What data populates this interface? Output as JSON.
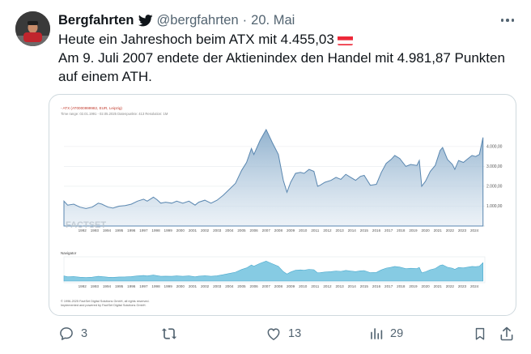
{
  "tweet": {
    "author_name": "Bergfahrten",
    "handle": "@bergfahrten",
    "separator": "·",
    "date": "20. Mai",
    "text_line1": "Heute ein Jahreshoch beim ATX mit 4.455,03",
    "text_line2": "Am 9. Juli 2007 endete der Aktienindex den Handel mit 4.981,87 Punkten",
    "text_line3": "auf einem ATH."
  },
  "chart_card": {
    "instrument_label": "- ATX (AT0000999982, EUR, Leipzig)",
    "meta_line": "Time range: 02.01.1991 - 02.05.2025  Datenpunkte: 413  Resolution: 1M",
    "watermark": "FACTSET",
    "navigator_label": "Navigator",
    "copyright_line1": "© 1996-2025 FactSet Digital Solutions GmbH, all rights reserved.",
    "copyright_line2": "Implemented and powered by FactSet Digital Solutions GmbH.",
    "brand_color": "#c0392b",
    "area_color": "#a8c4dc",
    "navigator_color": "#86cbe3"
  },
  "chart_data": {
    "type": "area",
    "title": "ATX",
    "x_tick_labels": [
      "1992",
      "1993",
      "1994",
      "1995",
      "1996",
      "1997",
      "1998",
      "1999",
      "2000",
      "2001",
      "2002",
      "2003",
      "2004",
      "2005",
      "2006",
      "2007",
      "2008",
      "2009",
      "2010",
      "2011",
      "2012",
      "2013",
      "2014",
      "2015",
      "2016",
      "2017",
      "2018",
      "2019",
      "2020",
      "2021",
      "2022",
      "2023",
      "2024"
    ],
    "y_tick_labels": [
      "1.000,00",
      "2.000,00",
      "3.000,00",
      "4.000,00"
    ],
    "ylim": [
      0,
      5300
    ],
    "xlim": [
      1991.0,
      2025.35
    ],
    "grid": true,
    "series": [
      {
        "x": [
          1991.0,
          1991.3,
          1991.8,
          1992.3,
          1992.8,
          1993.3,
          1993.8,
          1994.1,
          1994.6,
          1995.0,
          1995.5,
          1996.0,
          1996.5,
          1997.0,
          1997.5,
          1997.8,
          1998.3,
          1998.6,
          1998.9,
          1999.3,
          1999.8,
          2000.2,
          2000.7,
          2001.2,
          2001.7,
          2002.0,
          2002.5,
          2003.0,
          2003.5,
          2004.0,
          2004.5,
          2005.0,
          2005.5,
          2005.9,
          2006.3,
          2006.5,
          2007.0,
          2007.5,
          2007.7,
          2008.0,
          2008.5,
          2008.9,
          2009.2,
          2009.5,
          2009.9,
          2010.3,
          2010.6,
          2011.0,
          2011.4,
          2011.7,
          2011.9,
          2012.3,
          2012.8,
          2013.2,
          2013.6,
          2014.0,
          2014.4,
          2014.8,
          2015.2,
          2015.5,
          2016.0,
          2016.5,
          2016.9,
          2017.3,
          2017.7,
          2018.0,
          2018.4,
          2018.9,
          2019.3,
          2019.8,
          2020.0,
          2020.2,
          2020.5,
          2020.9,
          2021.3,
          2021.7,
          2021.9,
          2022.3,
          2022.7,
          2022.9,
          2023.2,
          2023.6,
          2023.9,
          2024.3,
          2024.6,
          2024.9,
          2025.2
        ],
        "y": [
          1250,
          1050,
          1100,
          950,
          880,
          950,
          1150,
          1100,
          950,
          900,
          1000,
          1030,
          1100,
          1250,
          1350,
          1250,
          1450,
          1320,
          1150,
          1200,
          1150,
          1250,
          1150,
          1250,
          1050,
          1200,
          1300,
          1150,
          1300,
          1550,
          1850,
          2150,
          2800,
          3200,
          3900,
          3600,
          4300,
          4850,
          4600,
          4200,
          3600,
          2300,
          1700,
          2200,
          2650,
          2700,
          2650,
          2850,
          2750,
          2000,
          2050,
          2200,
          2300,
          2450,
          2350,
          2600,
          2450,
          2300,
          2500,
          2550,
          2050,
          2100,
          2700,
          3150,
          3350,
          3550,
          3400,
          3000,
          3100,
          3050,
          3300,
          2000,
          2250,
          2750,
          3050,
          3800,
          3950,
          3350,
          3100,
          2850,
          3300,
          3200,
          3350,
          3550,
          3500,
          3600,
          4455
        ]
      }
    ]
  },
  "actions": {
    "reply_count": "3",
    "retweet_count": "",
    "like_count": "13",
    "views_count": "29"
  }
}
